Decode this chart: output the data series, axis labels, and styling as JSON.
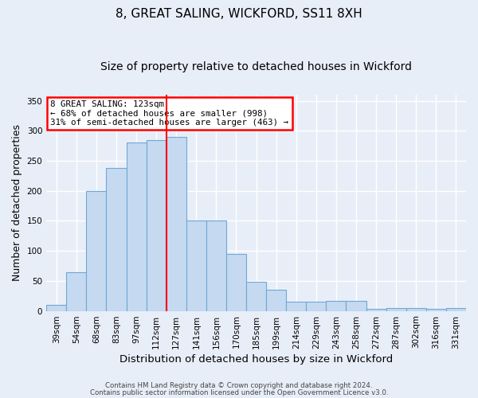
{
  "title": "8, GREAT SALING, WICKFORD, SS11 8XH",
  "subtitle": "Size of property relative to detached houses in Wickford",
  "xlabel": "Distribution of detached houses by size in Wickford",
  "ylabel": "Number of detached properties",
  "categories": [
    "39sqm",
    "54sqm",
    "68sqm",
    "83sqm",
    "97sqm",
    "112sqm",
    "127sqm",
    "141sqm",
    "156sqm",
    "170sqm",
    "185sqm",
    "199sqm",
    "214sqm",
    "229sqm",
    "243sqm",
    "258sqm",
    "272sqm",
    "287sqm",
    "302sqm",
    "316sqm",
    "331sqm"
  ],
  "values": [
    10,
    65,
    200,
    238,
    280,
    285,
    290,
    150,
    150,
    95,
    48,
    35,
    15,
    15,
    17,
    17,
    3,
    5,
    5,
    3,
    5
  ],
  "bar_color": "#c5d9f1",
  "bar_edge_color": "#6fa8d4",
  "red_line_index": 6,
  "annotation_line1": "8 GREAT SALING: 123sqm",
  "annotation_line2": "← 68% of detached houses are smaller (998)",
  "annotation_line3": "31% of semi-detached houses are larger (463) →",
  "ylim": [
    0,
    360
  ],
  "yticks": [
    0,
    50,
    100,
    150,
    200,
    250,
    300,
    350
  ],
  "footer1": "Contains HM Land Registry data © Crown copyright and database right 2024.",
  "footer2": "Contains public sector information licensed under the Open Government Licence v3.0.",
  "bg_color": "#e8eef8",
  "grid_color": "#ffffff",
  "title_fontsize": 11,
  "subtitle_fontsize": 10,
  "tick_fontsize": 7.5,
  "ylabel_fontsize": 9,
  "xlabel_fontsize": 9.5
}
